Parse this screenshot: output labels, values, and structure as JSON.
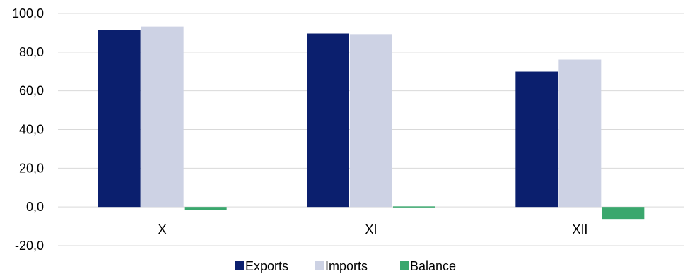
{
  "chart_data": {
    "type": "bar",
    "categories": [
      "X",
      "XI",
      "XII"
    ],
    "series": [
      {
        "name": "Exports",
        "color": "#0b1f6e",
        "values": [
          91.5,
          89.6,
          69.9
        ]
      },
      {
        "name": "Imports",
        "color": "#cdd2e4",
        "values": [
          93.2,
          89.3,
          76.1
        ]
      },
      {
        "name": "Balance",
        "color": "#3aa76d",
        "values": [
          -1.7,
          0.3,
          -6.2
        ]
      }
    ],
    "ylim": [
      -20,
      100
    ],
    "yticks": [
      "100,0",
      "80,0",
      "60,0",
      "40,0",
      "20,0",
      "0,0",
      "-20,0"
    ],
    "ytick_values": [
      100,
      80,
      60,
      40,
      20,
      0,
      -20
    ],
    "grid": true,
    "legend_position": "bottom"
  }
}
